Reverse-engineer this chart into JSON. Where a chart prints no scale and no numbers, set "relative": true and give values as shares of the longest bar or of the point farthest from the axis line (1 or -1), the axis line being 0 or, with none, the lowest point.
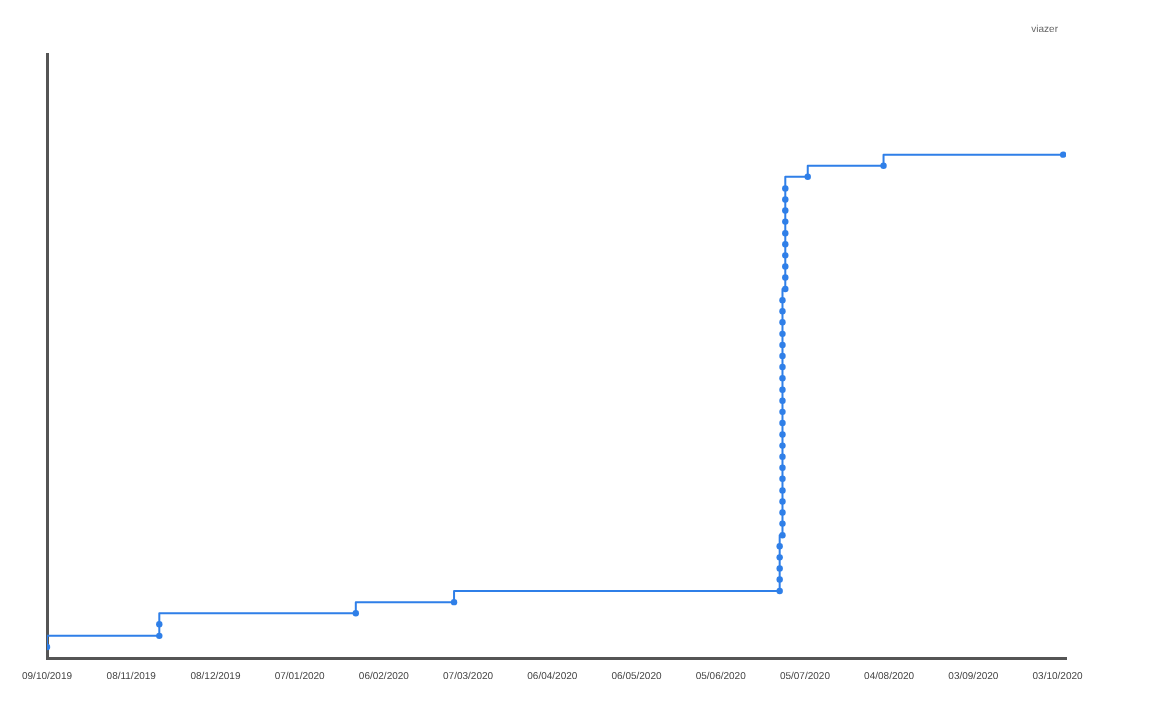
{
  "chart_data": {
    "type": "step",
    "relative": true,
    "legend": "top right",
    "grid": false,
    "marker": "circle",
    "line_style": "solid",
    "xlim": [
      "2019-10-09",
      "2020-10-06"
    ],
    "xticks": [
      {
        "value": "2019-10-09",
        "label": "09/10/2019"
      },
      {
        "value": "2019-11-08",
        "label": "08/11/2019"
      },
      {
        "value": "2019-12-08",
        "label": "08/12/2019"
      },
      {
        "value": "2020-01-07",
        "label": "07/01/2020"
      },
      {
        "value": "2020-02-06",
        "label": "06/02/2020"
      },
      {
        "value": "2020-03-07",
        "label": "07/03/2020"
      },
      {
        "value": "2020-04-06",
        "label": "06/04/2020"
      },
      {
        "value": "2020-05-06",
        "label": "06/05/2020"
      },
      {
        "value": "2020-06-05",
        "label": "05/06/2020"
      },
      {
        "value": "2020-07-05",
        "label": "05/07/2020"
      },
      {
        "value": "2020-08-04",
        "label": "04/08/2020"
      },
      {
        "value": "2020-09-03",
        "label": "03/09/2020"
      },
      {
        "value": "2020-10-03",
        "label": "03/10/2020"
      }
    ],
    "series": [
      {
        "name": "viazer",
        "color": "#2f7fe8",
        "x": [
          "2019-10-09",
          "2019-11-18",
          "2019-11-18",
          "2020-01-27",
          "2020-03-02",
          "2020-06-26",
          "2020-06-26",
          "2020-06-26",
          "2020-06-26",
          "2020-06-26",
          "2020-06-27",
          "2020-06-27",
          "2020-06-27",
          "2020-06-27",
          "2020-06-27",
          "2020-06-27",
          "2020-06-27",
          "2020-06-27",
          "2020-06-27",
          "2020-06-27",
          "2020-06-27",
          "2020-06-27",
          "2020-06-27",
          "2020-06-27",
          "2020-06-27",
          "2020-06-27",
          "2020-06-27",
          "2020-06-27",
          "2020-06-27",
          "2020-06-27",
          "2020-06-27",
          "2020-06-27",
          "2020-06-28",
          "2020-06-28",
          "2020-06-28",
          "2020-06-28",
          "2020-06-28",
          "2020-06-28",
          "2020-06-28",
          "2020-06-28",
          "2020-06-28",
          "2020-06-28",
          "2020-07-06",
          "2020-08-02",
          "2020-10-05"
        ],
        "values": [
          0.022,
          0.044,
          0.067,
          0.089,
          0.111,
          0.133,
          0.156,
          0.178,
          0.2,
          0.222,
          0.244,
          0.267,
          0.289,
          0.311,
          0.333,
          0.356,
          0.378,
          0.4,
          0.422,
          0.444,
          0.467,
          0.489,
          0.511,
          0.533,
          0.556,
          0.578,
          0.6,
          0.622,
          0.644,
          0.667,
          0.689,
          0.711,
          0.733,
          0.756,
          0.778,
          0.8,
          0.822,
          0.844,
          0.867,
          0.889,
          0.911,
          0.933,
          0.956,
          0.978,
          1
        ]
      }
    ]
  }
}
